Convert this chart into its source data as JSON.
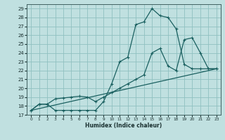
{
  "xlabel": "Humidex (Indice chaleur)",
  "background_color": "#c0e0e0",
  "grid_color": "#90c0c0",
  "line_color": "#1a6060",
  "xlim": [
    -0.5,
    23.5
  ],
  "ylim": [
    17,
    29.5
  ],
  "xticks": [
    0,
    1,
    2,
    3,
    4,
    5,
    6,
    7,
    8,
    9,
    10,
    11,
    12,
    13,
    14,
    15,
    16,
    17,
    18,
    19,
    20,
    21,
    22,
    23
  ],
  "yticks": [
    17,
    18,
    19,
    20,
    21,
    22,
    23,
    24,
    25,
    26,
    27,
    28,
    29
  ],
  "line1_x": [
    0,
    1,
    2,
    3,
    4,
    5,
    6,
    7,
    8,
    9,
    10,
    11,
    12,
    13,
    14,
    15,
    16,
    17,
    18,
    19,
    20,
    21,
    22,
    23
  ],
  "line1_y": [
    17.5,
    18.2,
    18.2,
    17.5,
    17.5,
    17.5,
    17.5,
    17.5,
    17.5,
    18.5,
    20.5,
    23.0,
    23.5,
    27.2,
    27.5,
    29.0,
    28.2,
    28.0,
    26.7,
    22.7,
    22.2,
    22.2,
    22.2,
    22.2
  ],
  "line2_x": [
    0,
    1,
    2,
    3,
    4,
    5,
    6,
    7,
    8,
    9,
    10,
    11,
    12,
    13,
    14,
    15,
    16,
    17,
    18,
    19,
    20,
    21,
    22,
    23
  ],
  "line2_y": [
    17.5,
    18.2,
    18.2,
    18.8,
    18.9,
    19.0,
    19.1,
    19.0,
    18.5,
    19.0,
    19.5,
    20.0,
    20.5,
    21.0,
    21.5,
    24.0,
    24.5,
    22.5,
    22.0,
    25.5,
    25.7,
    24.0,
    22.2,
    22.2
  ],
  "line3_x": [
    0,
    23
  ],
  "line3_y": [
    17.5,
    22.2
  ]
}
